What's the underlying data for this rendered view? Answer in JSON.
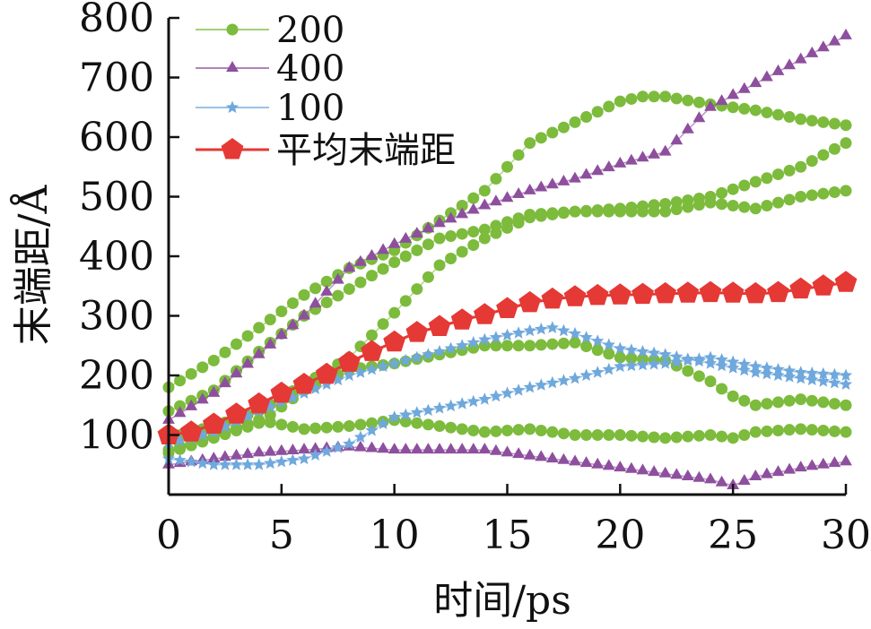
{
  "chart_data": {
    "type": "line",
    "xlabel": "时间/ps",
    "ylabel": "末端距/Å",
    "xlim": [
      0,
      30
    ],
    "ylim": [
      0,
      800
    ],
    "xticks": [
      "0",
      "5",
      "10",
      "15",
      "20",
      "25",
      "30"
    ],
    "yticks": [
      "100",
      "200",
      "300",
      "400",
      "500",
      "600",
      "700",
      "800"
    ],
    "grid": false,
    "legend_position": "top-left",
    "legend": [
      "200",
      "400",
      "100",
      "平均末端距"
    ],
    "series": [
      {
        "name": "200",
        "color": "#7cbb3c",
        "marker": "circle",
        "x": [
          0,
          2,
          4,
          6,
          8,
          10,
          12,
          14,
          16,
          18,
          20,
          21,
          22,
          24,
          26,
          28,
          30
        ],
        "y": [
          180,
          225,
          280,
          335,
          380,
          410,
          460,
          510,
          590,
          625,
          660,
          668,
          668,
          655,
          645,
          630,
          620
        ]
      },
      {
        "name": "200",
        "color": "#7cbb3c",
        "marker": "circle",
        "x": [
          0,
          2,
          4,
          6,
          8,
          10,
          12,
          14,
          16,
          18,
          20,
          22,
          24,
          26,
          28,
          30
        ],
        "y": [
          140,
          175,
          240,
          300,
          345,
          390,
          430,
          445,
          470,
          475,
          480,
          488,
          500,
          525,
          550,
          590
        ]
      },
      {
        "name": "200",
        "color": "#7cbb3c",
        "marker": "circle",
        "x": [
          0,
          2,
          4,
          6,
          8,
          10,
          12,
          14,
          16,
          18,
          20,
          22,
          24,
          26,
          28,
          30
        ],
        "y": [
          95,
          115,
          140,
          185,
          230,
          305,
          385,
          430,
          465,
          475,
          475,
          475,
          490,
          480,
          500,
          510
        ]
      },
      {
        "name": "200",
        "color": "#7cbb3c",
        "marker": "circle",
        "x": [
          0,
          2,
          4,
          6,
          8,
          10,
          12,
          14,
          16,
          18,
          20,
          22,
          24,
          25,
          26,
          28,
          30
        ],
        "y": [
          70,
          95,
          120,
          175,
          210,
          220,
          235,
          250,
          250,
          255,
          230,
          225,
          190,
          165,
          150,
          160,
          150
        ]
      },
      {
        "name": "200",
        "color": "#7cbb3c",
        "marker": "circle",
        "x": [
          0,
          2,
          4,
          6,
          8,
          10,
          12,
          14,
          16,
          18,
          20,
          22,
          24,
          25,
          26,
          28,
          30
        ],
        "y": [
          75,
          100,
          125,
          110,
          115,
          125,
          115,
          105,
          110,
          100,
          100,
          95,
          100,
          95,
          105,
          110,
          105
        ]
      },
      {
        "name": "400",
        "color": "#8e4f9e",
        "marker": "triangle",
        "x": [
          0,
          2,
          4,
          6,
          8,
          10,
          12,
          14,
          16,
          18,
          20,
          22,
          24,
          26,
          28,
          30
        ],
        "y": [
          125,
          170,
          235,
          300,
          380,
          420,
          455,
          485,
          510,
          530,
          555,
          575,
          650,
          690,
          730,
          770
        ]
      },
      {
        "name": "400",
        "color": "#8e4f9e",
        "marker": "triangle",
        "x": [
          0,
          2,
          4,
          6,
          8,
          10,
          12,
          14,
          16,
          18,
          20,
          22,
          24,
          25,
          26,
          28,
          30
        ],
        "y": [
          50,
          60,
          70,
          75,
          80,
          75,
          75,
          75,
          65,
          55,
          45,
          35,
          25,
          15,
          30,
          45,
          55
        ]
      },
      {
        "name": "100",
        "color": "#6fa8dc",
        "marker": "star",
        "x": [
          0,
          2,
          4,
          6,
          8,
          10,
          12,
          14,
          16,
          17,
          18,
          20,
          22,
          24,
          26,
          28,
          30
        ],
        "y": [
          85,
          105,
          140,
          170,
          200,
          220,
          240,
          260,
          275,
          280,
          270,
          245,
          235,
          220,
          205,
          195,
          185
        ]
      },
      {
        "name": "100",
        "color": "#6fa8dc",
        "marker": "star",
        "x": [
          0,
          2,
          4,
          6,
          8,
          10,
          12,
          14,
          16,
          18,
          20,
          22,
          24,
          26,
          28,
          30
        ],
        "y": [
          60,
          50,
          50,
          60,
          85,
          130,
          145,
          160,
          180,
          195,
          215,
          220,
          230,
          215,
          205,
          200
        ]
      },
      {
        "name": "平均末端距",
        "color": "#e53935",
        "marker": "pentagon",
        "x": [
          0,
          1,
          2,
          3,
          4,
          5,
          6,
          7,
          8,
          9,
          10,
          11,
          12,
          13,
          14,
          15,
          16,
          17,
          18,
          19,
          20,
          21,
          22,
          23,
          24,
          25,
          26,
          27,
          28,
          29,
          30
        ],
        "y": [
          100,
          105,
          118,
          135,
          152,
          170,
          185,
          202,
          222,
          240,
          256,
          272,
          282,
          293,
          302,
          312,
          322,
          328,
          332,
          334,
          335,
          336,
          337,
          338,
          339,
          338,
          337,
          339,
          345,
          350,
          356
        ]
      }
    ]
  }
}
